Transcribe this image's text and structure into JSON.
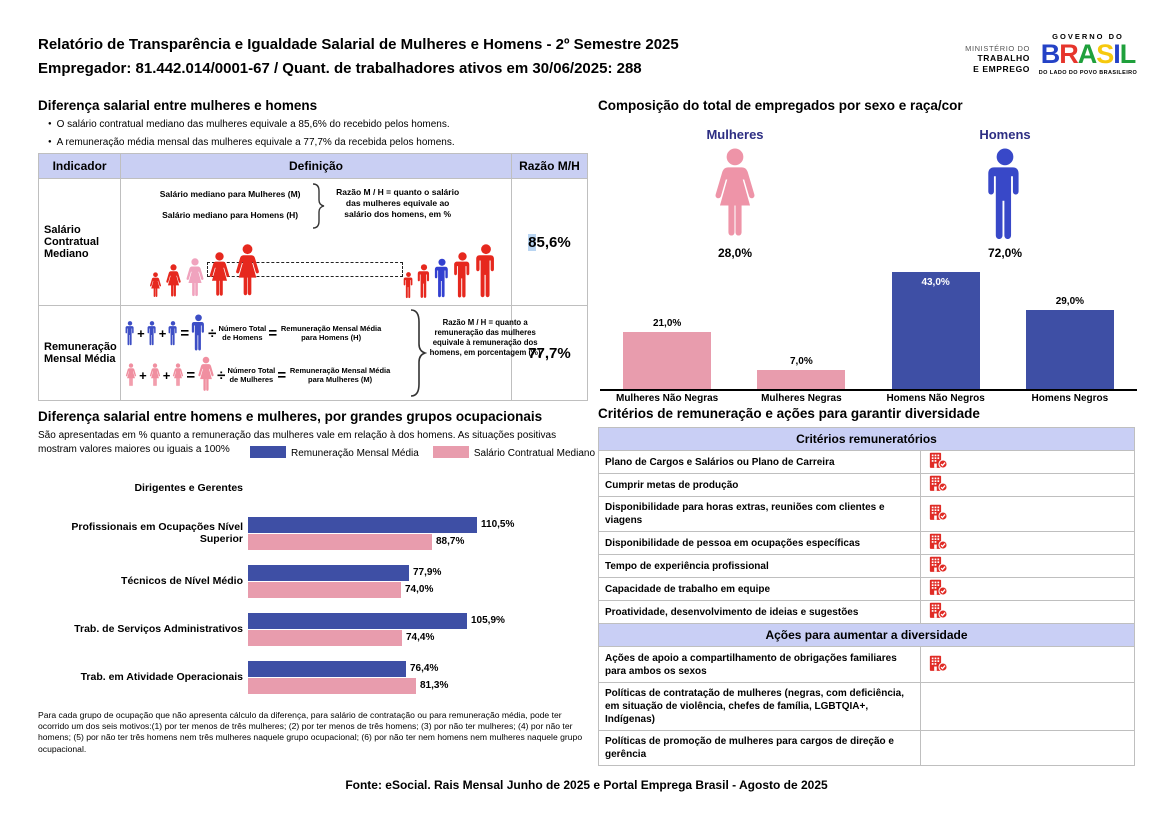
{
  "header": {
    "title_line1": "Relatório de Transparência e Igualdade Salarial de Mulheres e Homens - 2º Semestre 2025",
    "title_line2": "Empregador: 81.442.014/0001-67 / Quant. de trabalhadores ativos em 30/06/2025: 288",
    "logo": {
      "ministry_line1": "MINISTÉRIO DO",
      "ministry_line2": "TRABALHO",
      "ministry_line3": "E EMPREGO",
      "gov_top": "GOVERNO DO",
      "gov_name_letters": [
        "B",
        "R",
        "A",
        "S",
        "I",
        "L"
      ],
      "gov_bottom": "DO LADO DO POVO BRASILEIRO"
    }
  },
  "salary_gap": {
    "title": "Diferença salarial entre mulheres e homens",
    "bullets": [
      "O salário contratual mediano das mulheres equivale a 85,6% do recebido pelos homens.",
      "A remuneração média mensal das mulheres equivale a 77,7% da recebida pelos homens."
    ],
    "table": {
      "headers": [
        "Indicador",
        "Definição",
        "Razão M/H"
      ],
      "row1": {
        "indicator": "Salário Contratual Mediano",
        "def_line1": "Salário mediano para Mulheres (M)",
        "def_line2": "Salário mediano para Homens (H)",
        "ratio_note": "Razão M / H = quanto o salário das mulheres equivale ao salário dos homens, em %",
        "ratio_value": "85,6%"
      },
      "row2": {
        "indicator": "Remuneração Mensal Média",
        "men_divisor": "Número Total de Homens",
        "men_result": "Remuneração Mensal Média para Homens (H)",
        "women_divisor": "Número Total de Mulheres",
        "women_result": "Remuneração Mensal Média para Mulheres (M)",
        "ratio_note": "Razão M / H = quanto a remuneração das mulheres equivale à remuneração dos homens, em porcentagem (%)",
        "ratio_value": "77,7%"
      }
    }
  },
  "composition": {
    "title": "Composição do total de empregados por sexo e raça/cor",
    "mulheres_label": "Mulheres",
    "homens_label": "Homens",
    "mulheres_pct": "28,0%",
    "homens_pct": "72,0%"
  },
  "occupations": {
    "title": "Diferença salarial entre homens e mulheres, por grandes grupos ocupacionais",
    "subtitle": "São apresentadas em % quanto a remuneração das mulheres vale em relação à dos homens. As situações positivas mostram valores maiores ou iguais a 100%",
    "footnote": "Para cada grupo de ocupação que não apresenta cálculo da diferença, para salário de contratação ou para remuneração média, pode ter ocorrido um dos seis motivos:(1) por ter menos de três mulheres; (2) por ter menos de três homens; (3) por não ter mulheres; (4) por não ter homens; (5) por não ter três homens nem três mulheres naquele grupo ocupacional; (6) por não ter nem homens nem mulheres naquele grupo ocupacional."
  },
  "criteria": {
    "title": "Critérios de remuneração e ações para garantir diversidade",
    "section1_header": "Critérios remuneratórios",
    "section1_rows": [
      {
        "label": "Plano de Cargos e Salários ou Plano de Carreira",
        "checked": true
      },
      {
        "label": "Cumprir metas de produção",
        "checked": true
      },
      {
        "label": "Disponibilidade para horas extras, reuniões com clientes e viagens",
        "checked": true
      },
      {
        "label": "Disponibilidade de pessoa em ocupações específicas",
        "checked": true
      },
      {
        "label": "Tempo de experiência profissional",
        "checked": true
      },
      {
        "label": "Capacidade de trabalho em equipe",
        "checked": true
      },
      {
        "label": "Proatividade, desenvolvimento de ideias e sugestões",
        "checked": true
      }
    ],
    "section2_header": "Ações para aumentar a diversidade",
    "section2_rows": [
      {
        "label": "Ações de apoio a compartilhamento de obrigações familiares para ambos os sexos",
        "checked": true
      },
      {
        "label": "Políticas de contratação de mulheres (negras, com deficiência, em situação de violência, chefes de família, LGBTQIA+, Indígenas)",
        "checked": false
      },
      {
        "label": "Políticas de promoção de mulheres para cargos de direção e gerência",
        "checked": false
      }
    ]
  },
  "footer": "Fonte: eSocial. Rais Mensal Junho de 2025 e Portal Emprega Brasil - Agosto de 2025",
  "colors": {
    "bar_blue": "#3E4FA5",
    "bar_pink": "#E89CAD",
    "navy_label": "#2D2E83",
    "check_icon_red": "#E02B25",
    "table_header_lavender": "#C9CFF3",
    "ratio_highlight": "#B9D5F2"
  },
  "icons": {
    "woman": "woman-silhouette",
    "man": "man-silhouette",
    "org_check": "building-with-check-badge"
  },
  "chart_data": [
    {
      "type": "bar",
      "title": "Composição do total de empregados por sexo e raça/cor",
      "categories": [
        "Mulheres Não Negras",
        "Mulheres Negras",
        "Homens Não Negros",
        "Homens Negros"
      ],
      "values": [
        21.0,
        7.0,
        43.0,
        29.0
      ],
      "labels": [
        "21,0%",
        "7,0%",
        "43,0%",
        "29,0%"
      ],
      "colors": [
        "#E89CAD",
        "#E89CAD",
        "#3E4FA5",
        "#3E4FA5"
      ],
      "unit": "%",
      "summary": {
        "mulheres": 28.0,
        "homens": 72.0
      },
      "legend_position": "none",
      "grid": false
    },
    {
      "type": "bar-horizontal-grouped",
      "title": "Diferença salarial entre homens e mulheres, por grandes grupos ocupacionais",
      "categories": [
        "Dirigentes e Gerentes",
        "Profissionais em Ocupações Nível Superior",
        "Técnicos de Nível Médio",
        "Trab. de Serviços Administrativos",
        "Trab. em Atividade Operacionais"
      ],
      "series": [
        {
          "name": "Remuneração Mensal Média",
          "color": "#3E4FA5",
          "values": [
            null,
            110.5,
            77.9,
            105.9,
            76.4
          ],
          "labels": [
            "",
            "110,5%",
            "77,9%",
            "105,9%",
            "76,4%"
          ]
        },
        {
          "name": "Salário Contratual Mediano",
          "color": "#E89CAD",
          "values": [
            null,
            88.7,
            74.0,
            74.4,
            81.3
          ],
          "labels": [
            "",
            "88,7%",
            "74,0%",
            "74,4%",
            "81,3%"
          ]
        }
      ],
      "unit": "%",
      "grid": false,
      "legend_position": "top"
    }
  ]
}
